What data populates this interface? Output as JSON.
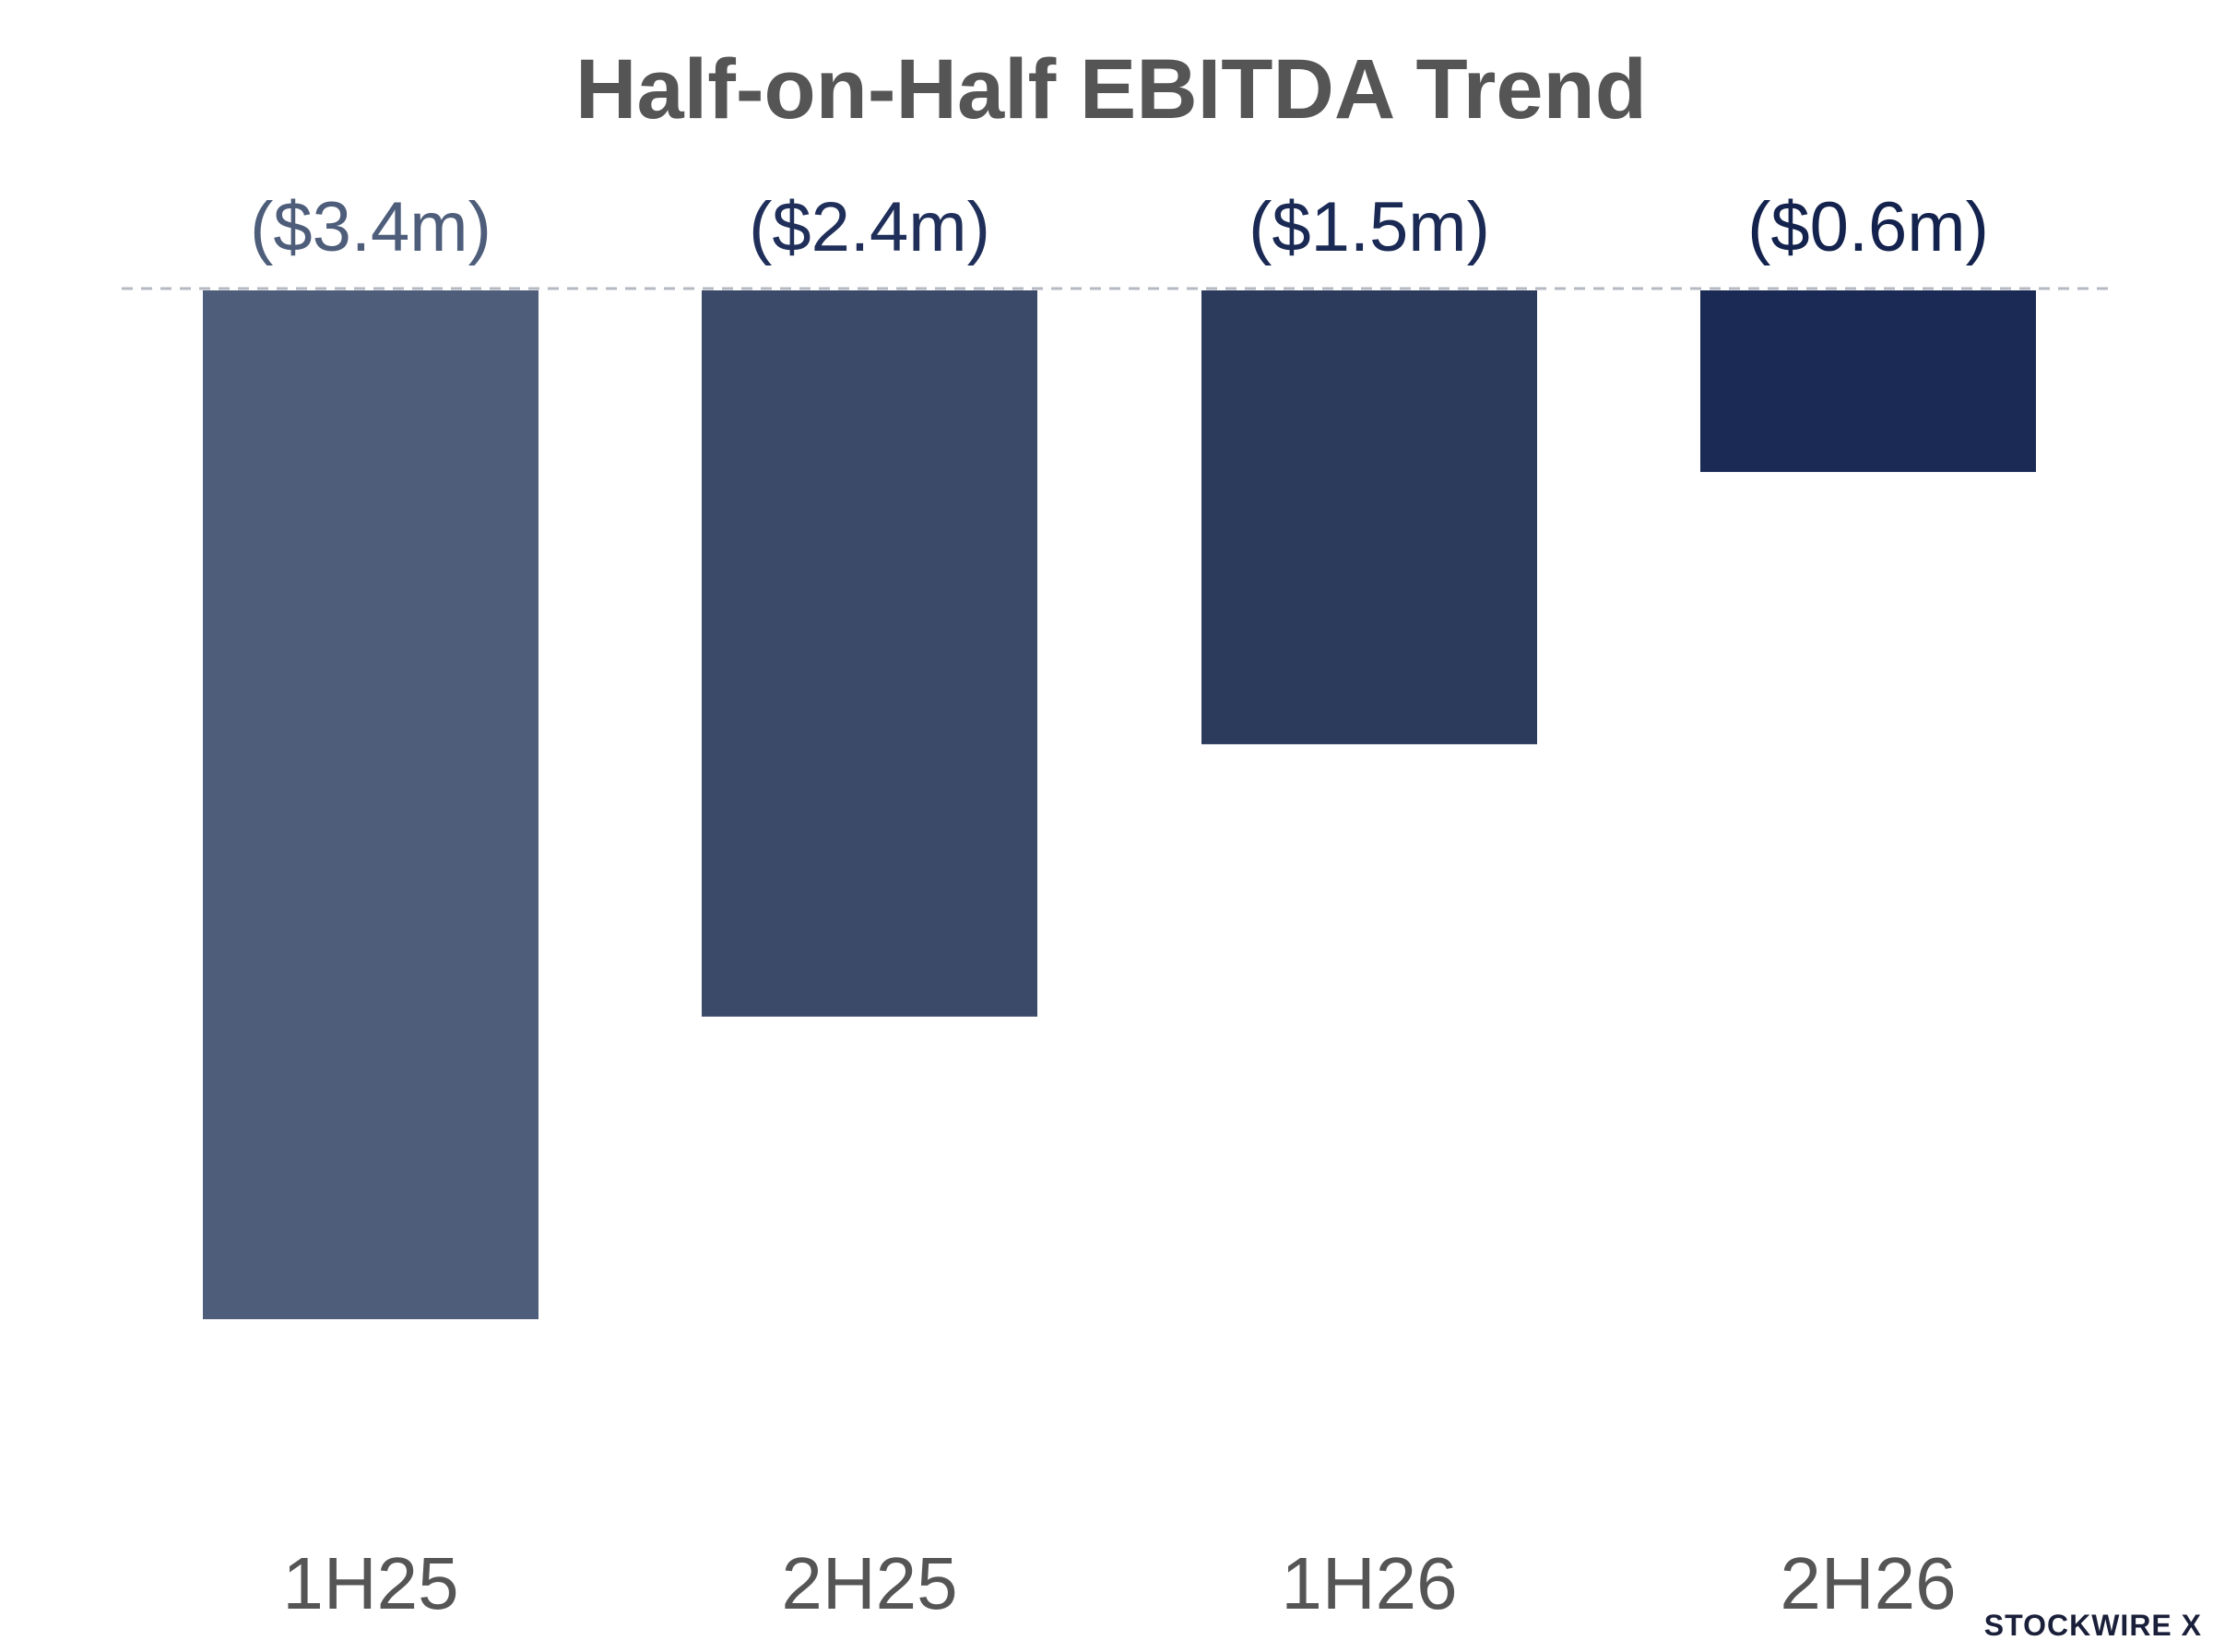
{
  "chart_data": {
    "type": "bar",
    "title": "Half-on-Half EBITDA Trend",
    "xlabel": "",
    "ylabel": "",
    "categories": [
      "1H25",
      "2H25",
      "1H26",
      "2H26"
    ],
    "values": [
      -3.4,
      -2.4,
      -1.5,
      -0.6
    ],
    "value_labels": [
      "($3.4m)",
      "($2.4m)",
      "($1.5m)",
      "($0.6m)"
    ],
    "ylim": [
      -3.4,
      0
    ],
    "zero_line": "dashed",
    "grid": false,
    "legend": "none",
    "colors": [
      "#4d5d7a",
      "#3b4a69",
      "#2c3a5c",
      "#1a2a54"
    ],
    "label_colors": [
      "#4d5d7a",
      "#1f2f5a",
      "#1a2a54",
      "#14234d"
    ]
  },
  "branding": {
    "text": "STOCKWIRE X"
  }
}
